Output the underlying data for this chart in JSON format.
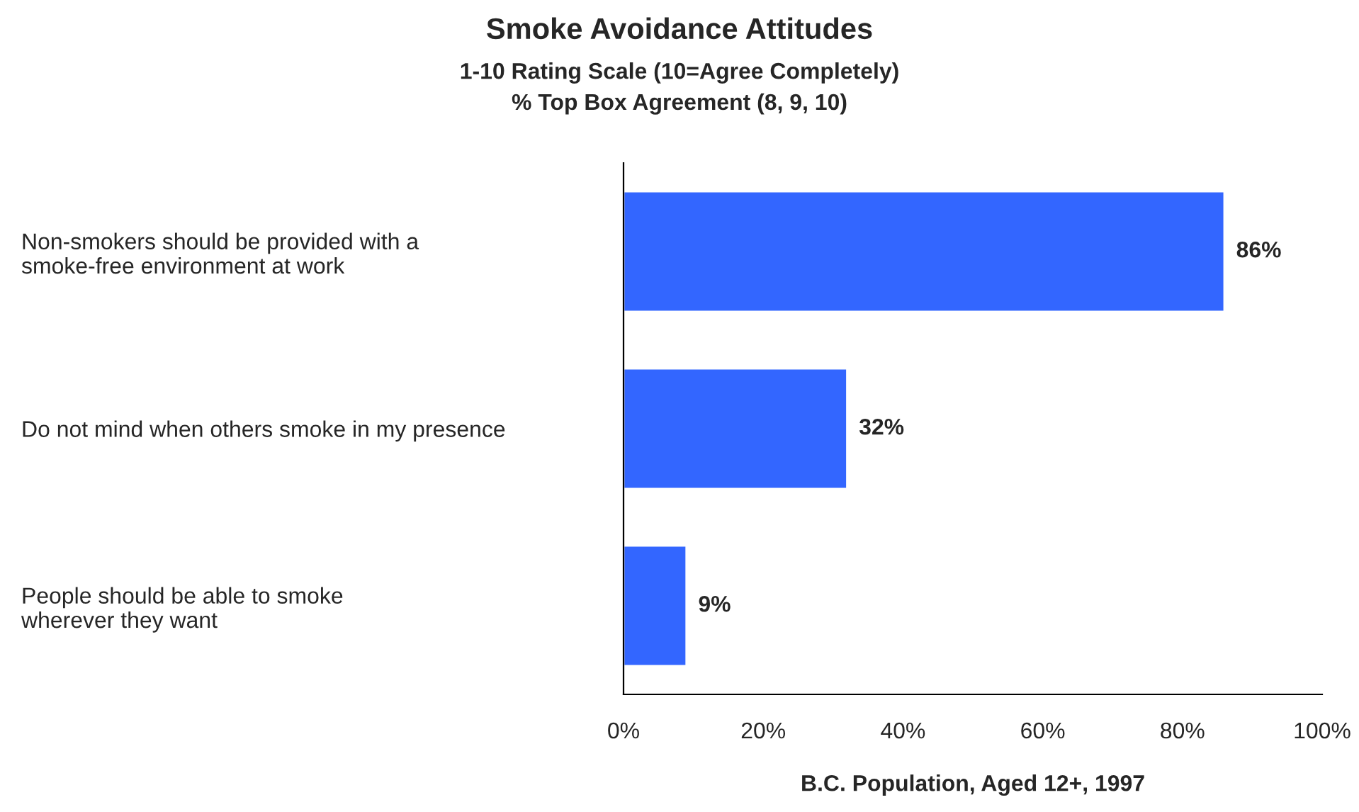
{
  "chart_data": {
    "type": "bar",
    "orientation": "horizontal",
    "title": "Smoke Avoidance Attitudes",
    "subtitle": "1-10 Rating Scale (10=Agree Completely)\n% Top Box Agreement (8, 9, 10)",
    "xlabel": "B.C. Population, Aged 12+, 1997",
    "categories": [
      "Non-smokers should be provided with a\nsmoke-free environment at work",
      "Do not mind when others smoke in my presence",
      "People should be able to smoke\nwherever they want"
    ],
    "values": [
      86,
      32,
      9
    ],
    "value_labels": [
      "86%",
      "32%",
      "9%"
    ],
    "color": "#3366ff",
    "xlim": [
      0,
      100
    ],
    "xticks": [
      {
        "value": 0,
        "label": "0%"
      },
      {
        "value": 20,
        "label": "20%"
      },
      {
        "value": 40,
        "label": "40%"
      },
      {
        "value": 60,
        "label": "60%"
      },
      {
        "value": 80,
        "label": "80%"
      },
      {
        "value": 100,
        "label": "100%"
      }
    ],
    "grid": false,
    "legend": false
  }
}
